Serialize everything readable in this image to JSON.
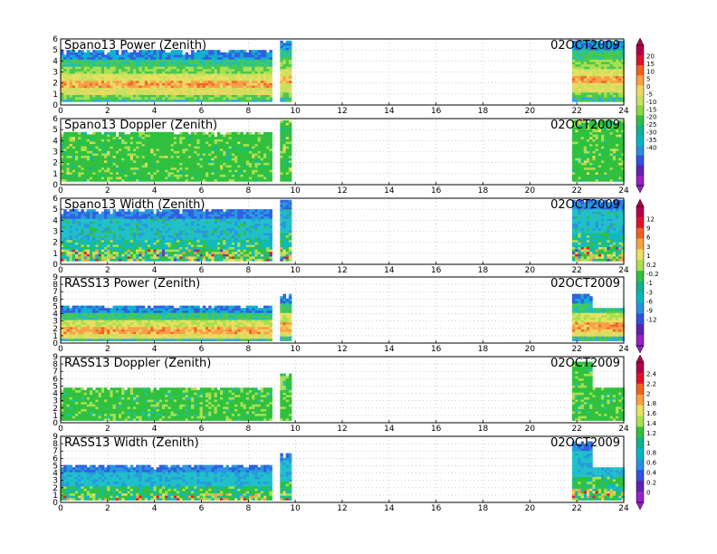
{
  "chart_data": [
    {
      "type": "heatmap",
      "title": "Spano13 Power (Zenith)",
      "date": "02OCT2009",
      "xlim": [
        0,
        24
      ],
      "ylim": [
        0,
        6
      ],
      "xticks": [
        "0",
        "2",
        "4",
        "6",
        "8",
        "10",
        "12",
        "14",
        "16",
        "18",
        "20",
        "22",
        "24"
      ],
      "yticks": [
        "0",
        "1",
        "2",
        "3",
        "4",
        "5",
        "6"
      ],
      "data_segments": [
        {
          "x": [
            0,
            9
          ],
          "ymax": 5.0
        },
        {
          "x": [
            9.35,
            9.75
          ],
          "ymax": 6.0
        },
        {
          "x": [
            21.8,
            24
          ],
          "ymax": 6.0
        }
      ],
      "colormap": "power",
      "colorbar": "power_scale"
    },
    {
      "type": "heatmap",
      "title": "Spano13 Doppler (Zenith)",
      "date": "02OCT2009",
      "xlim": [
        0,
        24
      ],
      "ylim": [
        0,
        6
      ],
      "xticks": [
        "0",
        "2",
        "4",
        "6",
        "8",
        "10",
        "12",
        "14",
        "16",
        "18",
        "20",
        "22",
        "24"
      ],
      "yticks": [
        "0",
        "1",
        "2",
        "3",
        "4",
        "5",
        "6"
      ],
      "data_segments": [
        {
          "x": [
            0,
            9
          ],
          "ymax": 4.8
        },
        {
          "x": [
            9.35,
            9.75
          ],
          "ymax": 6.0
        },
        {
          "x": [
            21.8,
            24
          ],
          "ymax": 6.0
        }
      ],
      "colormap": "doppler",
      "colorbar": "power_scale"
    },
    {
      "type": "heatmap",
      "title": "Spano13 Width (Zenith)",
      "date": "02OCT2009",
      "xlim": [
        0,
        24
      ],
      "ylim": [
        0,
        6
      ],
      "xticks": [
        "0",
        "2",
        "4",
        "6",
        "8",
        "10",
        "12",
        "14",
        "16",
        "18",
        "20",
        "22",
        "24"
      ],
      "yticks": [
        "0",
        "1",
        "2",
        "3",
        "4",
        "5",
        "6"
      ],
      "data_segments": [
        {
          "x": [
            0,
            9
          ],
          "ymax": 5.0
        },
        {
          "x": [
            9.35,
            9.75
          ],
          "ymax": 6.0
        },
        {
          "x": [
            21.8,
            24
          ],
          "ymax": 6.0
        }
      ],
      "colormap": "width",
      "colorbar": "width_scale"
    },
    {
      "type": "heatmap",
      "title": "RASS13 Power (Zenith)",
      "date": "02OCT2009",
      "xlim": [
        0,
        24
      ],
      "ylim": [
        0,
        9
      ],
      "xticks": [
        "0",
        "2",
        "4",
        "6",
        "8",
        "10",
        "12",
        "14",
        "16",
        "18",
        "20",
        "22",
        "24"
      ],
      "yticks": [
        "0",
        "1",
        "2",
        "3",
        "4",
        "5",
        "6",
        "7",
        "8",
        "9"
      ],
      "data_segments": [
        {
          "x": [
            0,
            9
          ],
          "ymax": 5.2
        },
        {
          "x": [
            9.35,
            9.75
          ],
          "ymax": 6.8
        },
        {
          "x": [
            21.8,
            24
          ],
          "ymax": 6.8
        }
      ],
      "gap": {
        "x": [
          22.6,
          24
        ],
        "y": [
          5.0,
          8.5
        ]
      },
      "colormap": "rass_power",
      "colorbar": "width_scale"
    },
    {
      "type": "heatmap",
      "title": "RASS13 Doppler (Zenith)",
      "date": "02OCT2009",
      "xlim": [
        0,
        24
      ],
      "ylim": [
        0,
        9
      ],
      "xticks": [
        "0",
        "2",
        "4",
        "6",
        "8",
        "10",
        "12",
        "14",
        "16",
        "18",
        "20",
        "22",
        "24"
      ],
      "yticks": [
        "0",
        "1",
        "2",
        "3",
        "4",
        "5",
        "6",
        "7",
        "8",
        "9"
      ],
      "data_segments": [
        {
          "x": [
            0,
            9
          ],
          "ymax": 5.0
        },
        {
          "x": [
            9.35,
            9.75
          ],
          "ymax": 6.8
        },
        {
          "x": [
            21.8,
            24
          ],
          "ymax": 8.5
        }
      ],
      "gap": {
        "x": [
          22.6,
          24
        ],
        "y": [
          5.0,
          8.5
        ]
      },
      "colormap": "rass_doppler",
      "colorbar": "rass_scale"
    },
    {
      "type": "heatmap",
      "title": "RASS13 Width (Zenith)",
      "date": "02OCT2009",
      "xlim": [
        0,
        24
      ],
      "ylim": [
        0,
        9
      ],
      "xticks": [
        "0",
        "2",
        "4",
        "6",
        "8",
        "10",
        "12",
        "14",
        "16",
        "18",
        "20",
        "22",
        "24"
      ],
      "yticks": [
        "0",
        "1",
        "2",
        "3",
        "4",
        "5",
        "6",
        "7",
        "8",
        "9"
      ],
      "data_segments": [
        {
          "x": [
            0,
            9
          ],
          "ymax": 5.2
        },
        {
          "x": [
            9.35,
            9.75
          ],
          "ymax": 6.8
        },
        {
          "x": [
            21.8,
            24
          ],
          "ymax": 8.5
        }
      ],
      "gap": {
        "x": [
          22.6,
          24
        ],
        "y": [
          5.0,
          8.5
        ]
      },
      "colormap": "rass_width",
      "colorbar": "rass_scale"
    }
  ],
  "colorbars": {
    "power_scale": {
      "labels": [
        "20",
        "15",
        "10",
        "5",
        "0",
        "-5",
        "-10",
        "-15",
        "-20",
        "-25",
        "-30",
        "-35",
        "-40"
      ],
      "colors": [
        "#b4004a",
        "#e0102a",
        "#f06020",
        "#f8a040",
        "#f0d860",
        "#c8e060",
        "#88d840",
        "#30c040",
        "#10b090",
        "#00b8c0",
        "#2890e0",
        "#3050e0",
        "#6020b0",
        "#9a20c8"
      ]
    },
    "width_scale": {
      "labels": [
        "12",
        "9",
        "6",
        "3",
        "1",
        "0.2",
        "-0.2",
        "-1",
        "-3",
        "-6",
        "-9",
        "-12"
      ],
      "colors": [
        "#b4004a",
        "#e0102a",
        "#f06020",
        "#f8a040",
        "#e8e060",
        "#a8e050",
        "#30c040",
        "#10b090",
        "#00b8c0",
        "#2890e0",
        "#3050e0",
        "#6020b0",
        "#9a20c8"
      ]
    },
    "rass_scale": {
      "labels": [
        "2.4",
        "2.2",
        "2",
        "1.8",
        "1.6",
        "1.4",
        "1.2",
        "1",
        "0.8",
        "0.6",
        "0.4",
        "0.2",
        "0"
      ],
      "colors": [
        "#b4004a",
        "#e0102a",
        "#f06020",
        "#f8a040",
        "#e8e060",
        "#a8e050",
        "#30c040",
        "#10b090",
        "#00b8c0",
        "#2890e0",
        "#3050e0",
        "#6020b0",
        "#9a20c8"
      ]
    }
  },
  "colors": {
    "power": "power",
    "doppler": "green",
    "width": "cyan",
    "axis": "#000000",
    "grid": "#b0b0b0"
  }
}
